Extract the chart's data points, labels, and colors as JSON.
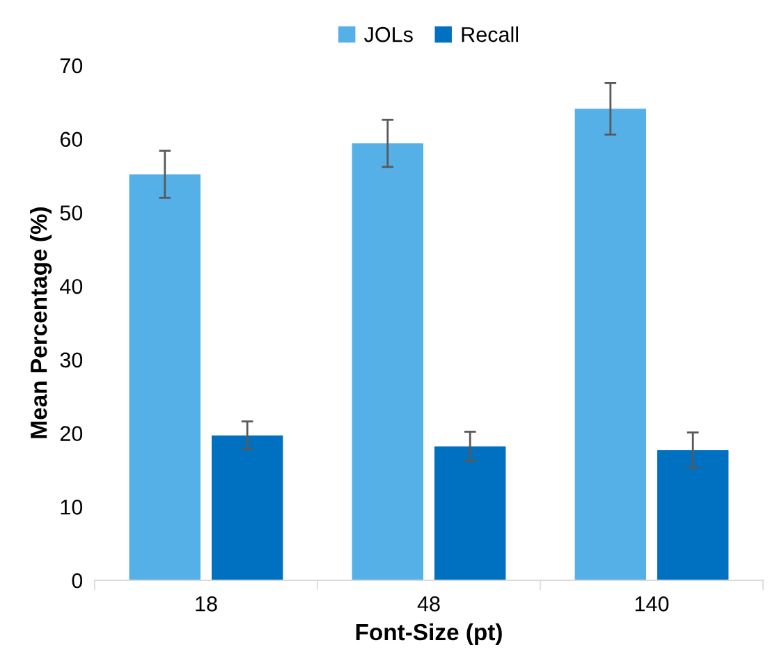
{
  "chart_data": {
    "type": "bar",
    "xlabel": "Font-Size (pt)",
    "ylabel": "Mean Percentage (%)",
    "categories": [
      "18",
      "48",
      "140"
    ],
    "series": [
      {
        "name": "JOLs",
        "color": "#56b0e8",
        "values": [
          55.2,
          59.4,
          64.1
        ],
        "errors": [
          3.2,
          3.2,
          3.5
        ]
      },
      {
        "name": "Recall",
        "color": "#0070c0",
        "values": [
          19.7,
          18.2,
          17.7
        ],
        "errors": [
          1.9,
          2.0,
          2.4
        ]
      }
    ],
    "ylim": [
      0,
      70
    ],
    "yticks": [
      0,
      10,
      20,
      30,
      40,
      50,
      60,
      70
    ],
    "grid": false,
    "legend": "top"
  }
}
